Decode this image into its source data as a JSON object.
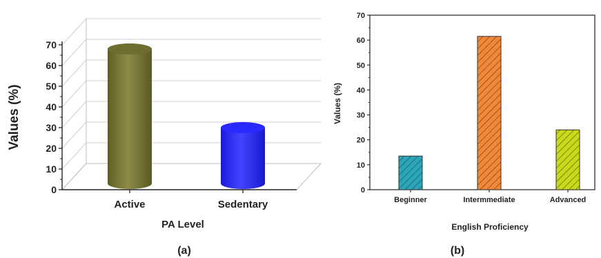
{
  "chart_data": [
    {
      "panel_label": "(a)",
      "type": "bar",
      "style": "3d-cylinder",
      "categories": [
        "Active",
        "Sedentary"
      ],
      "values": [
        69,
        31
      ],
      "colors": [
        "#7f7f3a",
        "#3333ff"
      ],
      "xlabel": "PA Level",
      "ylabel": "Values (%)",
      "ylim": [
        0,
        70
      ],
      "yticks": [
        0,
        10,
        20,
        30,
        40,
        50,
        60,
        70
      ],
      "grid": true
    },
    {
      "panel_label": "(b)",
      "type": "bar",
      "style": "hatched",
      "categories": [
        "Beginner",
        "Intermmediate",
        "Advanced"
      ],
      "values": [
        13.5,
        61.5,
        24
      ],
      "colors": [
        "#2aa6b8",
        "#f0883a",
        "#c8d81a"
      ],
      "xlabel": "English Proficiency",
      "ylabel": "Values (%)",
      "ylim": [
        0,
        70
      ],
      "yticks": [
        0,
        10,
        20,
        30,
        40,
        50,
        60,
        70
      ],
      "grid": false
    }
  ]
}
